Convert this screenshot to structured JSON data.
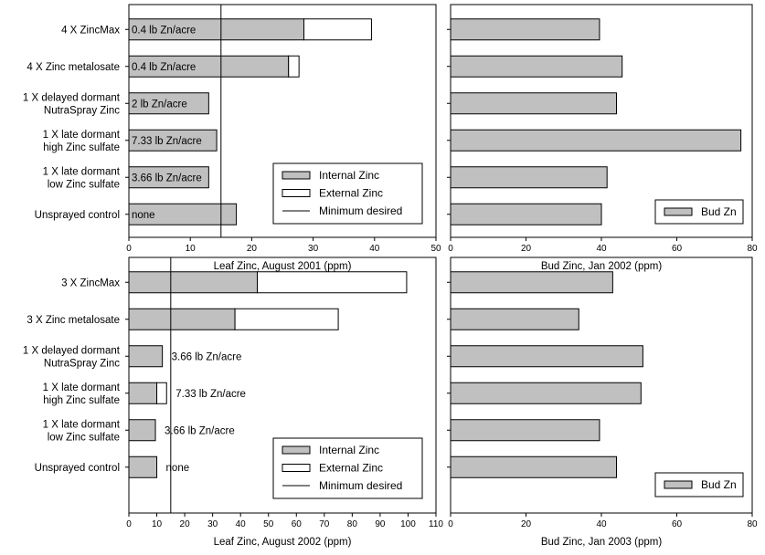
{
  "chart_data": [
    {
      "type": "bar",
      "orientation": "horizontal",
      "stacked": true,
      "categories": [
        "4 X ZincMax",
        "4 X Zinc metalosate",
        "1 X delayed dormant\nNutraSpray Zinc",
        "1 X late dormant\nhigh Zinc sulfate",
        "1 X late dormant\nlow Zinc sulfate",
        "Unsprayed control"
      ],
      "series": [
        {
          "name": "Internal Zinc",
          "values": [
            28.5,
            26,
            13,
            14.3,
            13,
            17.5
          ],
          "color": "#c0c0c0"
        },
        {
          "name": "External Zinc",
          "values": [
            11,
            1.7,
            0,
            0,
            0,
            0
          ],
          "color": "#ffffff"
        }
      ],
      "reference_line": {
        "name": "Minimum desired",
        "x": 15
      },
      "bar_labels": [
        "0.4 lb Zn/acre",
        "0.4 lb Zn/acre",
        "2 lb Zn/acre",
        "7.33 lb Zn/acre",
        "3.66 lb Zn/acre",
        "none"
      ],
      "bar_label_placement": "inside",
      "xlabel": "Leaf Zinc, August 2001 (ppm)",
      "xlim": [
        0,
        50
      ],
      "xticks": [
        0,
        10,
        20,
        30,
        40,
        50
      ],
      "legend": {
        "entries": [
          "Internal Zinc",
          "External Zinc",
          "Minimum desired"
        ],
        "placement": "bottom-right"
      },
      "grid": false
    },
    {
      "type": "bar",
      "orientation": "horizontal",
      "categories": [
        "4 X ZincMax",
        "4 X Zinc metalosate",
        "1 X delayed dormant\nNutraSpray Zinc",
        "1 X late dormant\nhigh Zinc sulfate",
        "1 X late dormant\nlow Zinc sulfate",
        "Unsprayed control"
      ],
      "series": [
        {
          "name": "Bud Zn",
          "values": [
            39.5,
            45.5,
            44,
            77,
            41.5,
            40
          ],
          "color": "#c0c0c0"
        }
      ],
      "xlabel": "Bud Zinc, Jan 2002 (ppm)",
      "xlim": [
        0,
        80
      ],
      "xticks": [
        0,
        20,
        40,
        60,
        80
      ],
      "legend": {
        "entries": [
          "Bud Zn"
        ],
        "placement": "bottom-right"
      },
      "grid": false
    },
    {
      "type": "bar",
      "orientation": "horizontal",
      "stacked": true,
      "categories": [
        "3 X ZincMax",
        "3 X Zinc metalosate",
        "1 X delayed dormant\nNutraSpray Zinc",
        "1 X late dormant\nhigh Zinc sulfate",
        "1 X late dormant\nlow Zinc sulfate",
        "Unsprayed control"
      ],
      "series": [
        {
          "name": "Internal Zinc",
          "values": [
            46,
            38,
            12,
            10,
            9.5,
            10
          ],
          "color": "#c0c0c0"
        },
        {
          "name": "External Zinc",
          "values": [
            53.5,
            37,
            0,
            3.5,
            0,
            0
          ],
          "color": "#ffffff"
        }
      ],
      "reference_line": {
        "name": "Minimum desired",
        "x": 15
      },
      "bar_labels": [
        "",
        "",
        "3.66 lb Zn/acre",
        "7.33 lb Zn/acre",
        "3.66 lb Zn/acre",
        "none"
      ],
      "bar_label_placement": "outside",
      "xlabel": "Leaf Zinc, August 2002 (ppm)",
      "xlim": [
        0,
        110
      ],
      "xticks": [
        0,
        10,
        20,
        30,
        40,
        50,
        60,
        70,
        80,
        90,
        100,
        110
      ],
      "legend": {
        "entries": [
          "Internal Zinc",
          "External Zinc",
          "Minimum desired"
        ],
        "placement": "bottom-right"
      },
      "grid": false
    },
    {
      "type": "bar",
      "orientation": "horizontal",
      "categories": [
        "3 X ZincMax",
        "3 X Zinc metalosate",
        "1 X delayed dormant\nNutraSpray Zinc",
        "1 X late dormant\nhigh Zinc sulfate",
        "1 X late dormant\nlow Zinc sulfate",
        "Unsprayed control"
      ],
      "series": [
        {
          "name": "Bud Zn",
          "values": [
            43,
            34,
            51,
            50.5,
            39.5,
            44
          ],
          "color": "#c0c0c0"
        }
      ],
      "xlabel": "Bud Zinc, Jan 2003 (ppm)",
      "xlim": [
        0,
        80
      ],
      "xticks": [
        0,
        20,
        40,
        60,
        80
      ],
      "legend": {
        "entries": [
          "Bud Zn"
        ],
        "placement": "bottom-right"
      },
      "grid": false
    }
  ]
}
